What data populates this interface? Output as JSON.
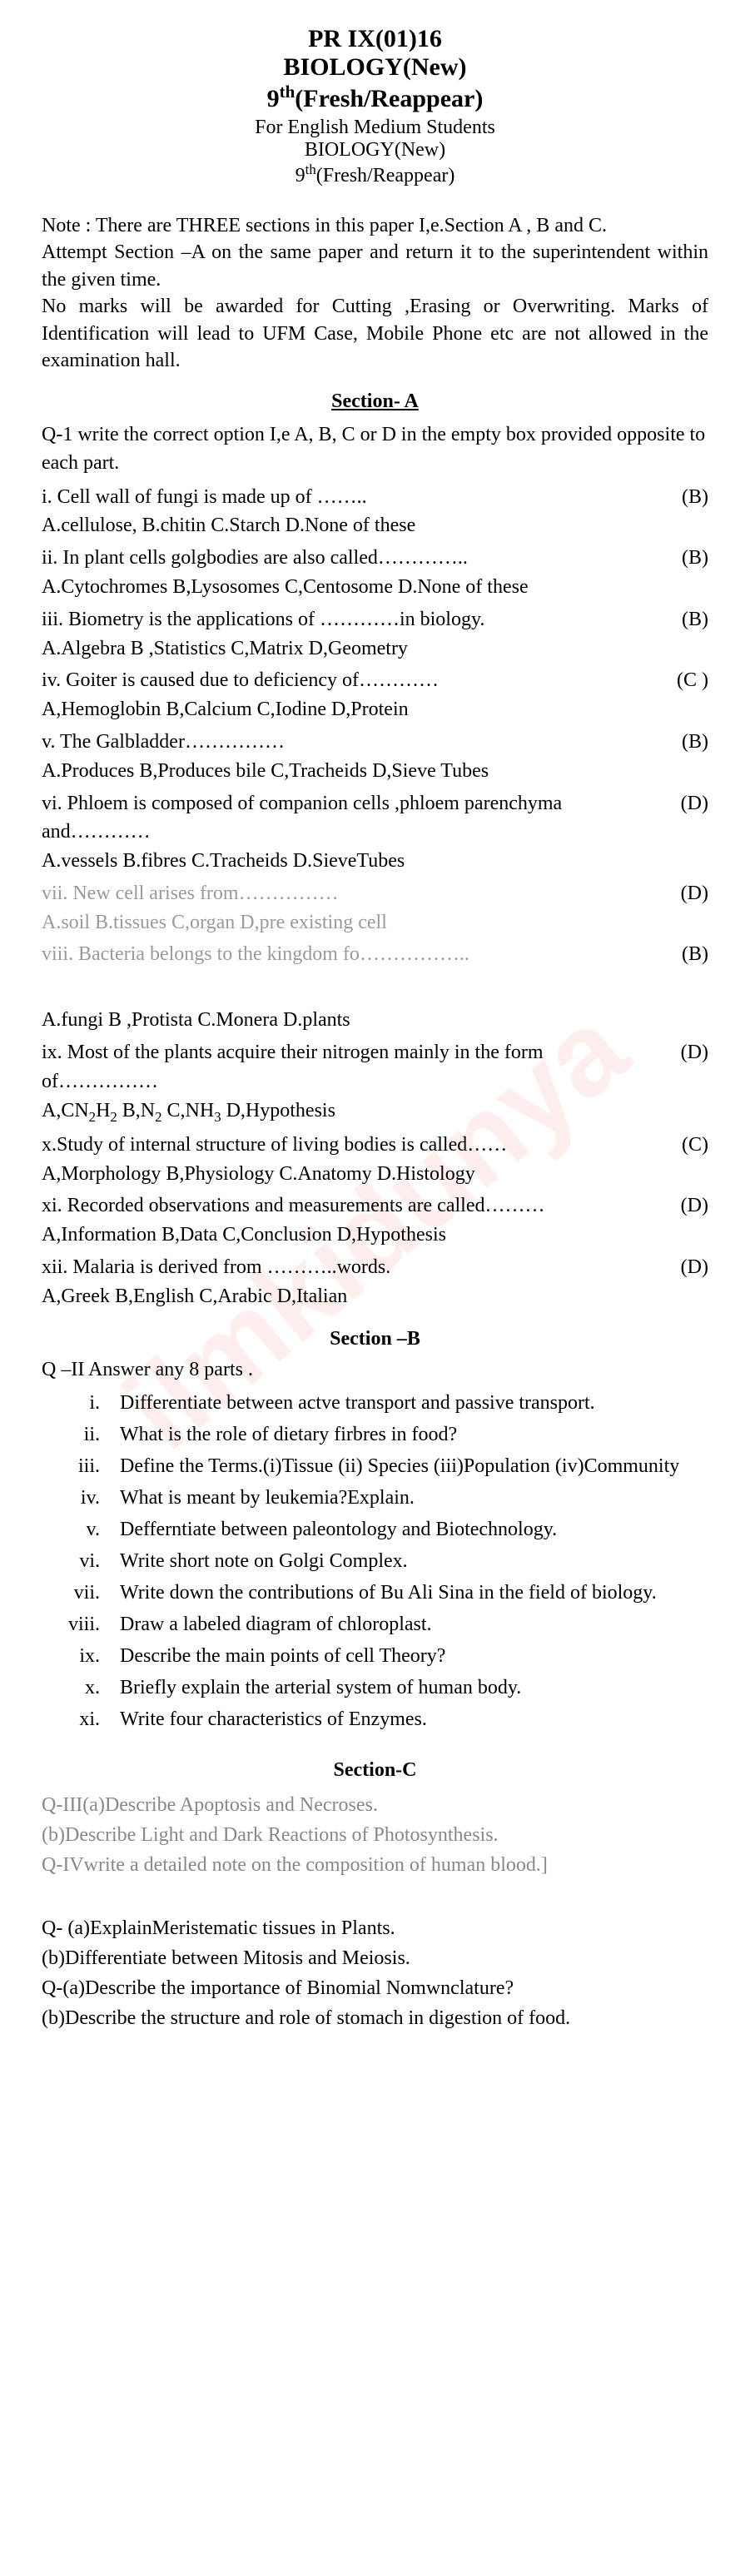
{
  "header": {
    "code": "PR IX(01)16",
    "subject": "BIOLOGY(New)",
    "grade_html": "9<sup>th</sup>(Fresh/Reappear)",
    "medium": "For English Medium Students",
    "subject2": "BIOLOGY(New)",
    "grade2_html": "9<sup>th</sup>(Fresh/Reappear)"
  },
  "note": "Note : There are THREE sections in this paper I,e.Section A , B and C.\nAttempt Section –A on the same paper and return it to the superintendent within the given time.\nNo marks will be awarded for Cutting ,Erasing or Overwriting. Marks of Identification will lead to UFM Case, Mobile Phone etc are not allowed in the examination hall.",
  "sectionA": {
    "title": "Section- A",
    "intro": "Q-1 write the correct option I,e A, B, C or D in the empty box provided opposite to each part.",
    "items": [
      {
        "q": "i. Cell wall of fungi is made up of ……..",
        "ans": "(B)",
        "opts": "A.cellulose, B.chitin C.Starch  D.None of these"
      },
      {
        "q": "ii. In plant cells golgbodies are also called…………..",
        "ans": "(B)",
        "opts": "A.Cytochromes B,Lysosomes  C,Centosome D.None of these"
      },
      {
        "q": "iii. Biometry is the applications of …………in biology.",
        "ans": "(B)",
        "opts": "A.Algebra  B ,Statistics  C,Matrix D,Geometry"
      },
      {
        "q": "iv. Goiter is caused due to deficiency of…………",
        "ans": "(C )",
        "opts": "A,Hemoglobin B,Calcium C,Iodine D,Protein"
      },
      {
        "q": "v. The Galbladder……………",
        "ans": "(B)",
        "opts": "A.Produces  B,Produces bile  C,Tracheids  D,Sieve Tubes"
      },
      {
        "q": "vi. Phloem is composed of companion cells ,phloem parenchyma and…………",
        "ans": "(D)",
        "opts": "A.vessels B.fibres C.Tracheids D.SieveTubes"
      },
      {
        "q_faded": "vii. New cell arises from……………",
        "ans": "(D)",
        "opts_faded": "A.soil B.tissues C,organ D,pre existing cell"
      },
      {
        "q_faded": "viii. Bacteria belongs to the kingdom fo……………..",
        "ans": "(B)"
      }
    ],
    "items2": [
      {
        "opts": "A.fungi B ,Protista C.Monera  D.plants"
      },
      {
        "q": "ix. Most of the plants acquire their nitrogen mainly in the form of……………",
        "ans": "(D)",
        "opts_html": "A,CN<sub>2</sub>H<sub>2</sub> B,N<sub>2</sub>  C,NH<sub>3</sub> D,Hypothesis"
      },
      {
        "q": "x.Study of internal structure of living bodies is called……",
        "ans": "(C)",
        "opts": "A,Morphology B,Physiology C.Anatomy D.Histology"
      },
      {
        "q": "xi. Recorded observations and measurements are called………",
        "ans": "(D)",
        "opts": "A,Information B,Data C,Conclusion D,Hypothesis"
      },
      {
        "q": "xii. Malaria is derived from ………..words.",
        "ans": "(D)",
        "opts": "A,Greek B,English  C,Arabic D,Italian"
      }
    ]
  },
  "sectionB": {
    "title": "Section –B",
    "intro": "Q –II Answer any 8 parts .",
    "parts": [
      {
        "n": "i.",
        "t": "Differentiate between actve transport and passive transport."
      },
      {
        "n": "ii.",
        "t": "What is the role of dietary firbres in food?"
      },
      {
        "n": "iii.",
        "t": "Define the Terms.(i)Tissue (ii) Species (iii)Population (iv)Community"
      },
      {
        "n": "iv.",
        "t": "What is meant by leukemia?Explain."
      },
      {
        "n": "v.",
        "t": "Defferntiate between paleontology and Biotechnology."
      },
      {
        "n": "vi.",
        "t": "Write short note on Golgi Complex."
      },
      {
        "n": "vii.",
        "t": "Write down the contributions of Bu Ali Sina in the field of biology."
      },
      {
        "n": "viii.",
        "t": "Draw a labeled diagram of chloroplast."
      },
      {
        "n": "ix.",
        "t": "Describe the main points of cell Theory?"
      },
      {
        "n": "x.",
        "t": "Briefly explain the arterial system of human body."
      },
      {
        "n": "xi.",
        "t": "Write four characteristics of Enzymes."
      }
    ]
  },
  "sectionC": {
    "title": "Section-C",
    "lines": [
      "Q-III(a)Describe Apoptosis and Necroses.",
      "(b)Describe Light and Dark Reactions of Photosynthesis.",
      "Q-IVwrite a detailed note on the composition of human blood.]"
    ]
  },
  "final": [
    "Q- (a)ExplainMeristematic tissues in Plants.",
    "(b)Differentiate between Mitosis and Meiosis.",
    "Q-(a)Describe the importance of Binomial Nomwnclature?",
    "(b)Describe the structure and role of stomach in  digestion of food."
  ],
  "watermark": "ilmkidunya"
}
